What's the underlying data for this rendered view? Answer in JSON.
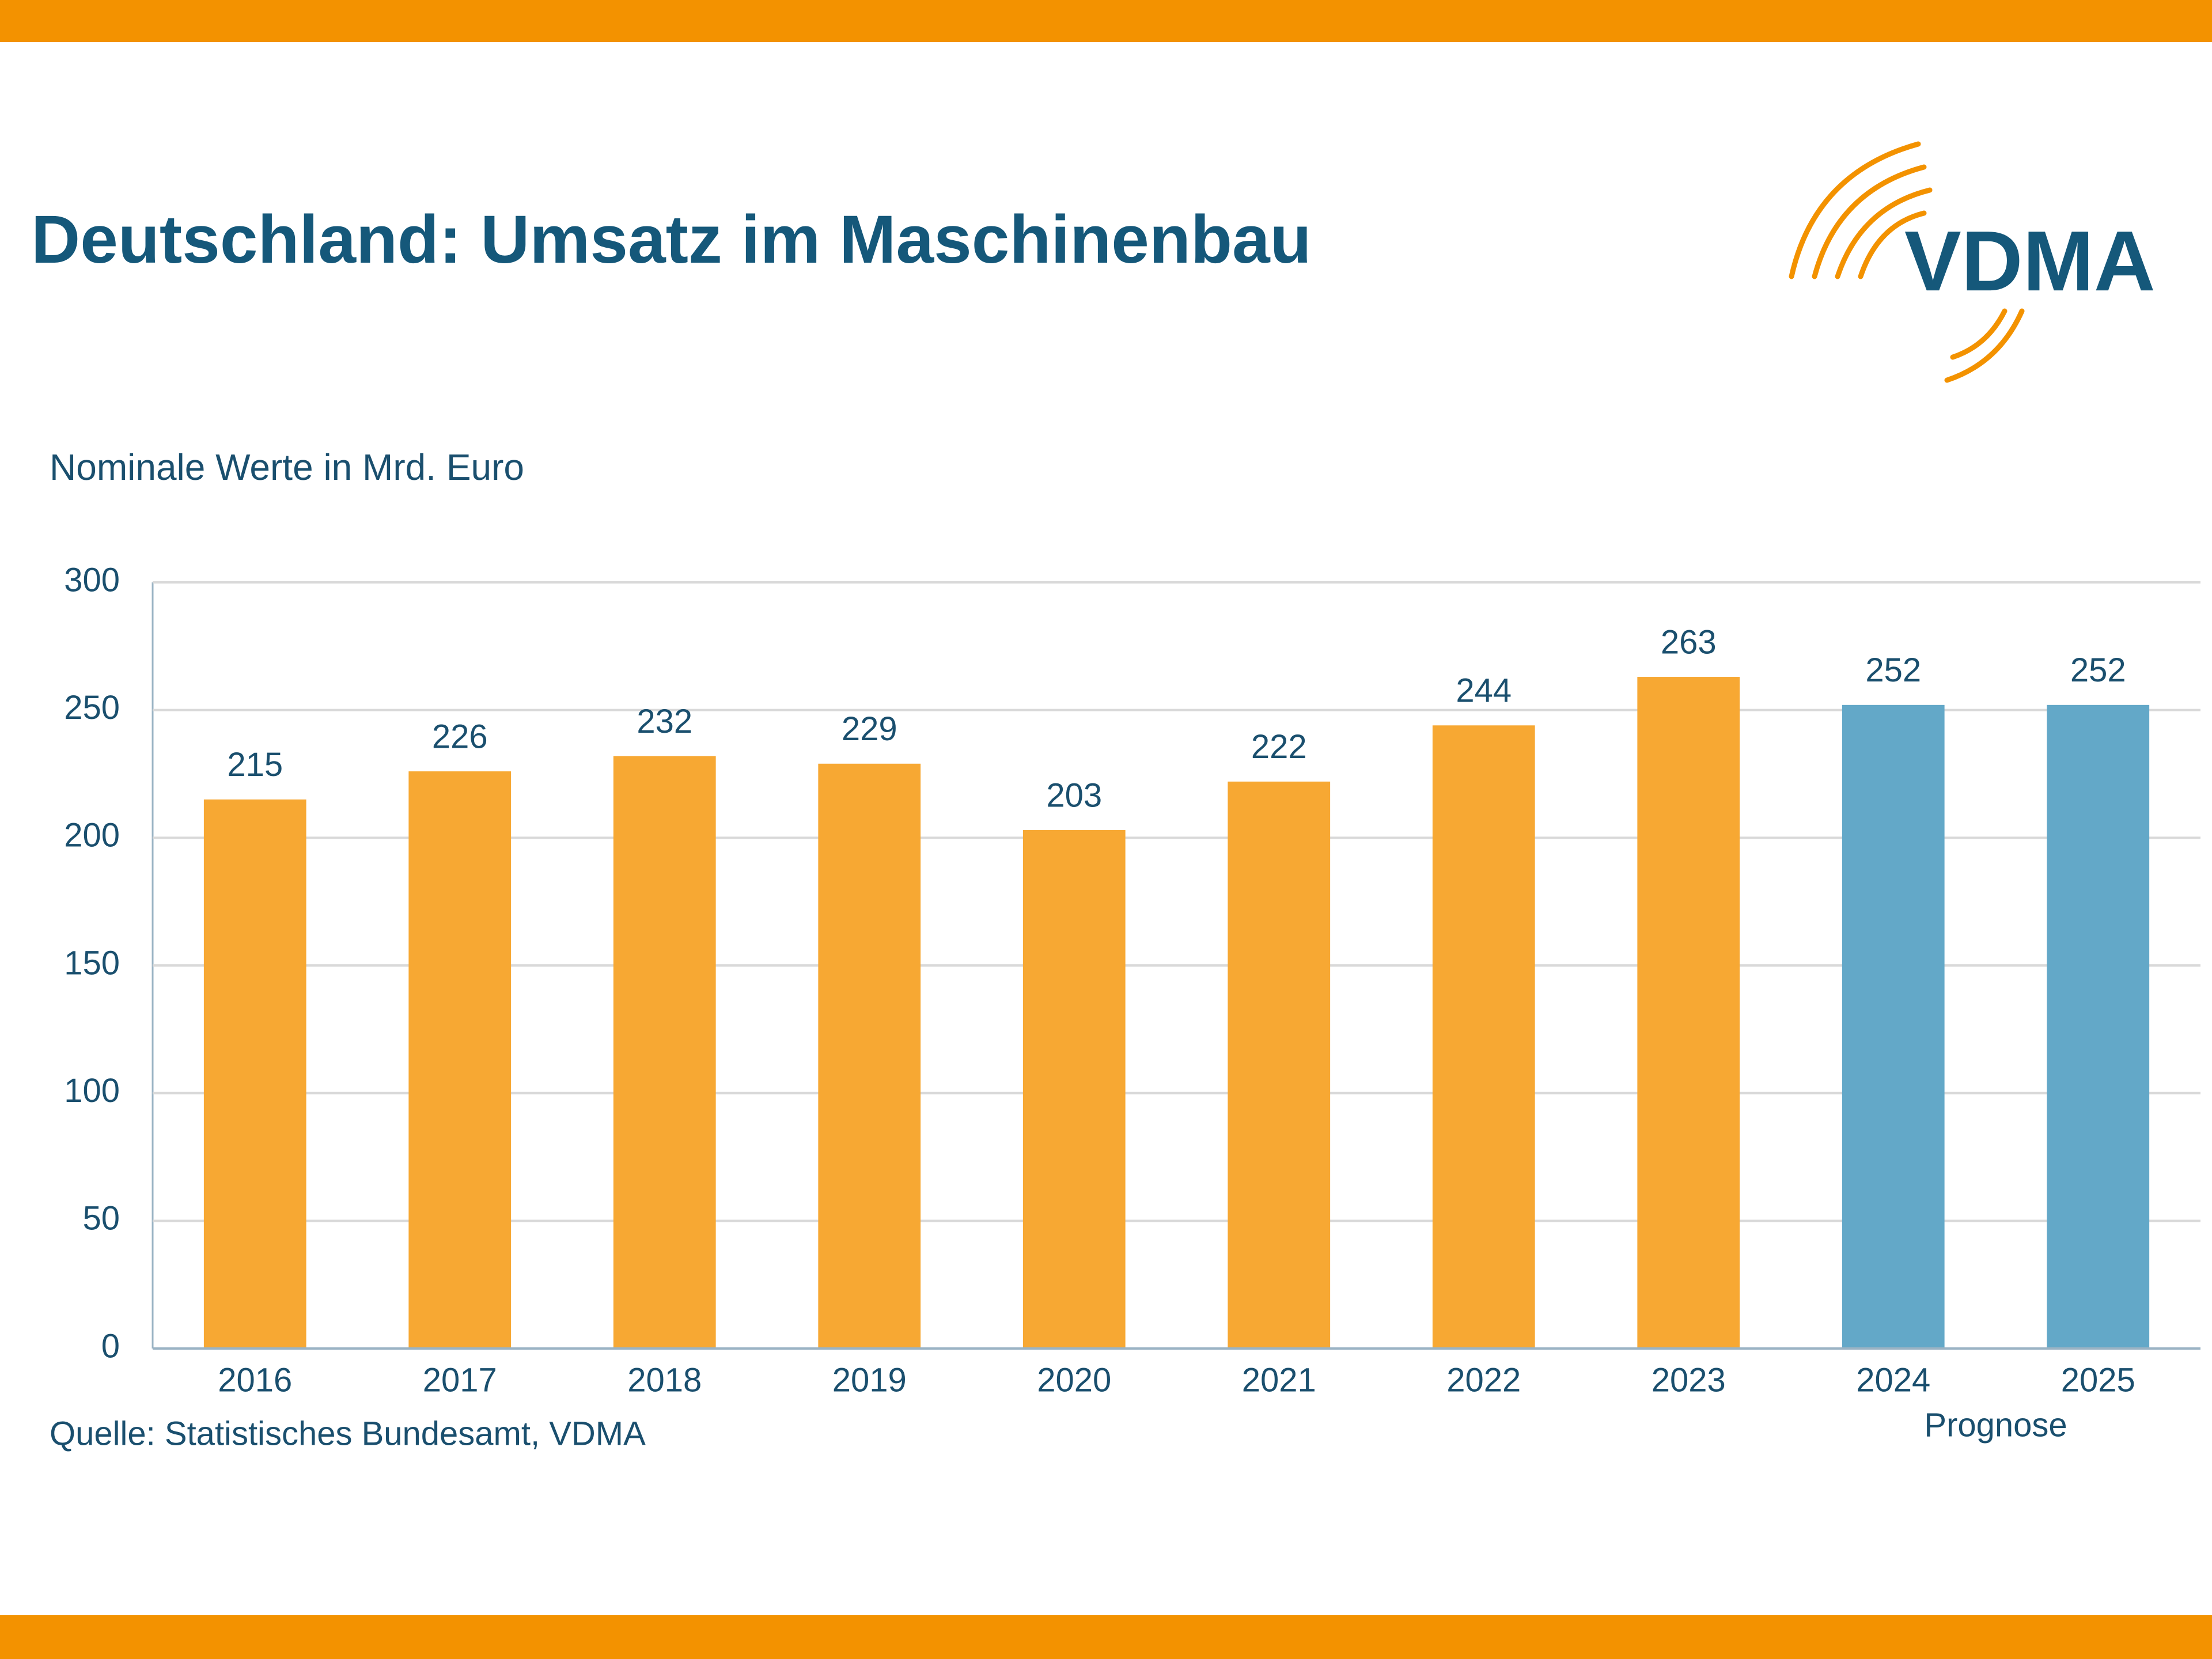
{
  "logo": "VDMA",
  "chart_data": {
    "type": "bar",
    "title": "Deutschland: Umsatz im Maschinenbau",
    "subtitle": "Nominale Werte in Mrd. Euro",
    "source": "Quelle: Statistisches Bundesamt, VDMA",
    "annotation": "Prognose",
    "categories": [
      "2016",
      "2017",
      "2018",
      "2019",
      "2020",
      "2021",
      "2022",
      "2023",
      "2024",
      "2025"
    ],
    "values": [
      215,
      226,
      232,
      229,
      203,
      222,
      244,
      263,
      252,
      252
    ],
    "colors": [
      "#f7a833",
      "#f7a833",
      "#f7a833",
      "#f7a833",
      "#f7a833",
      "#f7a833",
      "#f7a833",
      "#f7a833",
      "#63a8c8",
      "#63a8c8"
    ],
    "ylim": [
      0,
      300
    ],
    "yticks": [
      0,
      50,
      100,
      150,
      200,
      250,
      300
    ],
    "grid": true
  }
}
